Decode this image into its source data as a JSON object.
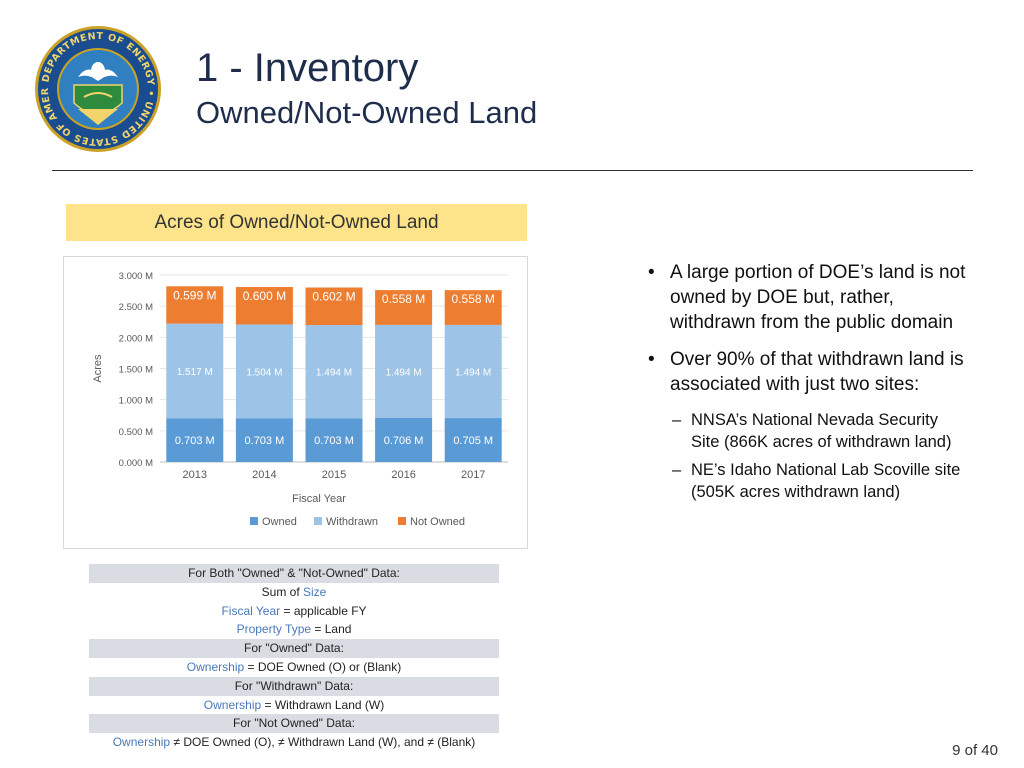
{
  "header": {
    "title": "1 - Inventory",
    "subtitle": "Owned/Not-Owned Land",
    "seal_text": "DEPARTMENT OF ENERGY • UNITED STATES OF AMERICA"
  },
  "chart_panel": {
    "title": "Acres of Owned/Not-Owned Land"
  },
  "chart_data": {
    "type": "bar",
    "stacked": true,
    "title": "Acres of Owned/Not-Owned Land",
    "xlabel": "Fiscal Year",
    "ylabel": "Acres",
    "categories": [
      "2013",
      "2014",
      "2015",
      "2016",
      "2017"
    ],
    "ylim": [
      0,
      3.0
    ],
    "yticks": [
      "0.000 M",
      "0.500 M",
      "1.000 M",
      "1.500 M",
      "2.000 M",
      "2.500 M",
      "3.000 M"
    ],
    "grid": true,
    "legend": "bottom",
    "series": [
      {
        "name": "Owned",
        "color": "#5b9bd5",
        "values": [
          0.703,
          0.703,
          0.703,
          0.706,
          0.705
        ],
        "labels": [
          "0.703 M",
          "0.703 M",
          "0.703 M",
          "0.706 M",
          "0.705 M"
        ]
      },
      {
        "name": "Withdrawn",
        "color": "#9dc3e6",
        "values": [
          1.517,
          1.504,
          1.494,
          1.494,
          1.494
        ],
        "labels": [
          "1.517 M",
          "1.504 M",
          "1.494 M",
          "1.494 M",
          "1.494 M"
        ]
      },
      {
        "name": "Not Owned",
        "color": "#ed7d31",
        "values": [
          0.599,
          0.6,
          0.602,
          0.558,
          0.558
        ],
        "labels": [
          "0.599 M",
          "0.600 M",
          "0.602 M",
          "0.558 M",
          "0.558 M"
        ]
      }
    ]
  },
  "bullets": [
    {
      "text": "A large portion of DOE’s land is not owned by DOE but, rather, withdrawn from the public domain",
      "subs": []
    },
    {
      "text": "Over 90% of that withdrawn land is associated with just two sites:",
      "subs": [
        "NNSA’s National Nevada Security Site (866K acres of withdrawn land)",
        "NE’s Idaho National Lab Scoville site (505K acres withdrawn land)"
      ]
    }
  ],
  "filters": {
    "both_header": "For Both \"Owned\" & \"Not-Owned\" Data:",
    "sum_prefix": "Sum of ",
    "sum_field": "Size",
    "fy_field": "Fiscal Year",
    "fy_rest": " = applicable FY",
    "pt_field": "Property Type",
    "pt_rest": " = Land",
    "owned_header": "For \"Owned\" Data:",
    "own_field": "Ownership",
    "owned_rest": " = DOE Owned (O) or (Blank)",
    "withdrawn_header": "For  \"Withdrawn\" Data:",
    "withdrawn_rest": " = Withdrawn Land (W)",
    "notowned_header": "For \"Not Owned\" Data:",
    "notowned_rest": " ≠ DOE Owned (O), ≠ Withdrawn Land (W), and ≠ (Blank)"
  },
  "footer": {
    "page": "9 of 40"
  }
}
